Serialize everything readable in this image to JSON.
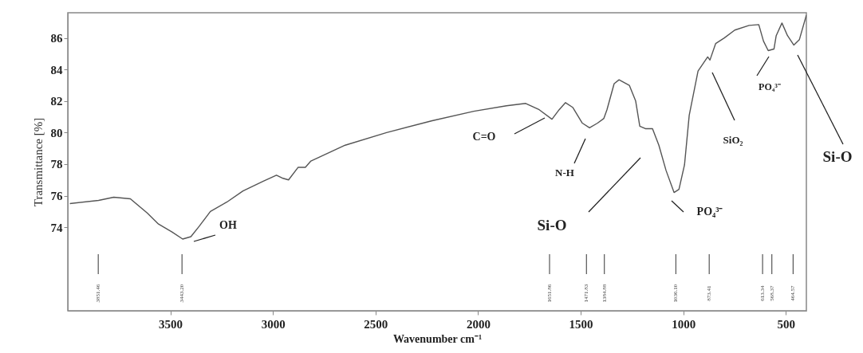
{
  "chart_data": {
    "type": "line",
    "xlabel": "Wavenumber cm⁻¹",
    "ylabel": "Transmittance [%]",
    "xlim": [
      4000,
      400
    ],
    "ylim": [
      68.7,
      87.6
    ],
    "xticks": [
      3500,
      3000,
      2500,
      2000,
      1500,
      1000,
      500
    ],
    "yticks": [
      74,
      76,
      78,
      80,
      82,
      84,
      86
    ],
    "grid": false,
    "series": [
      {
        "color": "#555555",
        "x": [
          3990,
          3850,
          3776,
          3695,
          3613,
          3558,
          3492,
          3440,
          3400,
          3360,
          3305,
          3224,
          3146,
          3049,
          2983,
          2951,
          2924,
          2877,
          2842,
          2815,
          2648,
          2446,
          2224,
          2021,
          1862,
          1768,
          1702,
          1640,
          1605,
          1574,
          1539,
          1492,
          1457,
          1418,
          1387,
          1372,
          1337,
          1313,
          1263,
          1232,
          1212,
          1185,
          1150,
          1119,
          1084,
          1045,
          1021,
          994,
          971,
          928,
          881,
          870,
          842,
          800,
          749,
          679,
          632,
          609,
          586,
          558,
          547,
          519,
          492,
          461,
          434,
          400
        ],
        "values": [
          75.5,
          75.7,
          75.9,
          75.8,
          74.9,
          74.2,
          73.7,
          73.25,
          73.4,
          74.05,
          75.0,
          75.6,
          76.3,
          76.9,
          77.3,
          77.1,
          77.0,
          77.8,
          77.8,
          78.2,
          79.2,
          80.0,
          80.75,
          81.35,
          81.7,
          81.85,
          81.45,
          80.85,
          81.45,
          81.9,
          81.6,
          80.6,
          80.3,
          80.6,
          80.9,
          81.45,
          83.1,
          83.35,
          83.0,
          82.0,
          80.4,
          80.25,
          80.25,
          79.2,
          77.6,
          76.2,
          76.4,
          77.95,
          81.1,
          83.9,
          84.8,
          84.6,
          85.65,
          86.0,
          86.5,
          86.8,
          86.85,
          85.8,
          85.2,
          85.3,
          86.15,
          86.95,
          86.15,
          85.55,
          85.9,
          87.45
        ]
      }
    ],
    "annotations": [
      "OH",
      "C=O",
      "N-H",
      "Si-O",
      "PO₄³⁻",
      "SiO₂",
      "PO₄³⁻",
      "Si-O",
      "3851.46",
      "3443.20",
      "1651.86",
      "1471.83",
      "1384.88",
      "1036.10",
      "873.41",
      "613.34",
      "568.37",
      "464.57"
    ]
  }
}
